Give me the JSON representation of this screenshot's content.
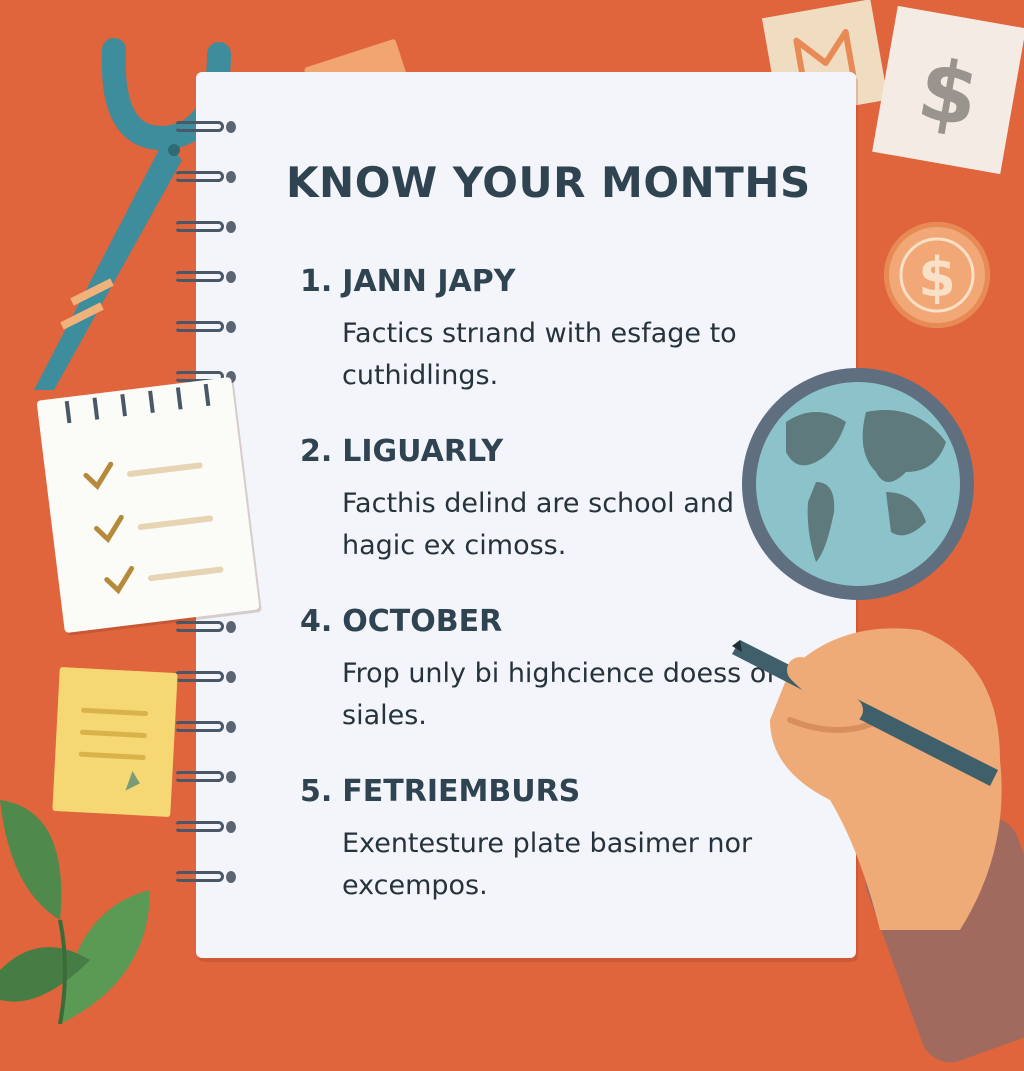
{
  "notebook": {
    "title": "KNOW YOUR MONTHS",
    "entries": [
      {
        "number": "1.",
        "heading": "JANN JAPY",
        "description": "Factics strıand with esfage to cuthidlings."
      },
      {
        "number": "2.",
        "heading": "LIGUARLY",
        "description": "Facthis delind are school and hagic ex cimoss."
      },
      {
        "number": "4.",
        "heading": "OCTOBER",
        "description": "Frop unly bi highcience doess of siales."
      },
      {
        "number": "5.",
        "heading": "FETRIEMBURS",
        "description": "Exentesture plate basimer nor excempos."
      }
    ]
  },
  "decorations": {
    "icons": [
      "scissors-icon",
      "checklist-notepad-icon",
      "sticky-note-icon",
      "dollar-card-icon",
      "m-card-icon",
      "dollar-coin-icon",
      "globe-icon",
      "hand-with-pen-icon",
      "plant-leaves-icon",
      "tape-icon"
    ],
    "dollar_glyph": "$"
  },
  "colors": {
    "background": "#e0643c",
    "paper": "#f3f5fb",
    "ink": "#2f4450",
    "scissors": "#3e8d9c",
    "globe_water": "#8cc2ca",
    "sticky": "#f5d873"
  }
}
